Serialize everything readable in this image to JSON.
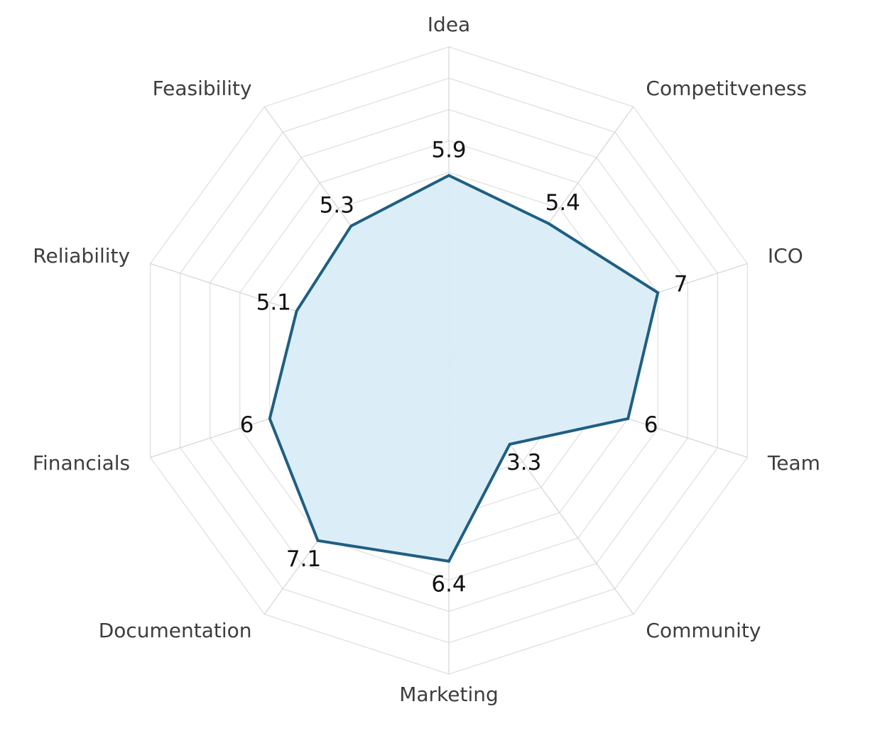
{
  "chart_data": {
    "type": "radar",
    "title": "",
    "categories": [
      "Idea",
      "Competitveness",
      "ICO",
      "Team",
      "Community",
      "Marketing",
      "Documentation",
      "Financials",
      "Reliability",
      "Feasibility"
    ],
    "series": [
      {
        "values": [
          5.9,
          5.4,
          7,
          6,
          3.3,
          6.4,
          7.1,
          6,
          5.1,
          5.3
        ]
      }
    ],
    "value_labels": [
      "5.9",
      "5.4",
      "7",
      "6",
      "3.3",
      "6.4",
      "7.1",
      "6",
      "5.1",
      "5.3"
    ],
    "rlim": [
      0,
      10
    ],
    "grid": true,
    "grid_rings": 10,
    "colors": {
      "line": "#1f5f82",
      "fill": "#d9edf7",
      "grid": "#dedede",
      "label": "#3d3d3d"
    }
  }
}
